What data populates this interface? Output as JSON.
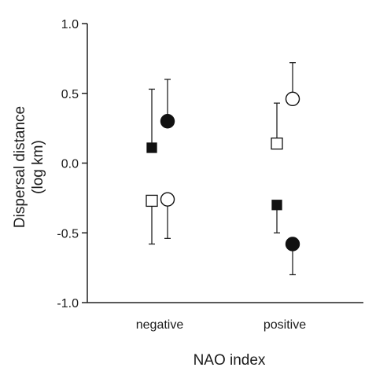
{
  "chart_data": {
    "type": "scatter",
    "title": "",
    "xlabel": "NAO index",
    "ylabel": [
      "Dispersal distance",
      "(log km)"
    ],
    "categories": [
      "negative",
      "positive"
    ],
    "ylim": [
      -1.0,
      1.0
    ],
    "yticks": [
      {
        "value": 1.0,
        "label": "1.0"
      },
      {
        "value": 0.5,
        "label": "0.5"
      },
      {
        "value": 0.0,
        "label": "0.0"
      },
      {
        "value": -0.5,
        "label": "-0.5"
      },
      {
        "value": -1.0,
        "label": "-1.0"
      }
    ],
    "grid": false,
    "legend": "none",
    "series": [
      {
        "marker": "square",
        "fill": "#111111",
        "offset": -1,
        "values": [
          0.11,
          -0.3
        ],
        "error_upper": [
          0.53,
          null
        ],
        "error_lower": [
          null,
          -0.5
        ]
      },
      {
        "marker": "circle",
        "fill": "#111111",
        "offset": 1,
        "values": [
          0.3,
          -0.58
        ],
        "error_upper": [
          0.6,
          null
        ],
        "error_lower": [
          null,
          -0.8
        ]
      },
      {
        "marker": "square",
        "fill": "#ffffff",
        "offset": -1,
        "values": [
          -0.27,
          0.14
        ],
        "error_upper": [
          null,
          0.43
        ],
        "error_lower": [
          -0.58,
          null
        ]
      },
      {
        "marker": "circle",
        "fill": "#ffffff",
        "offset": 1,
        "values": [
          -0.26,
          0.46
        ],
        "error_upper": [
          null,
          0.72
        ],
        "error_lower": [
          -0.54,
          null
        ]
      }
    ]
  }
}
